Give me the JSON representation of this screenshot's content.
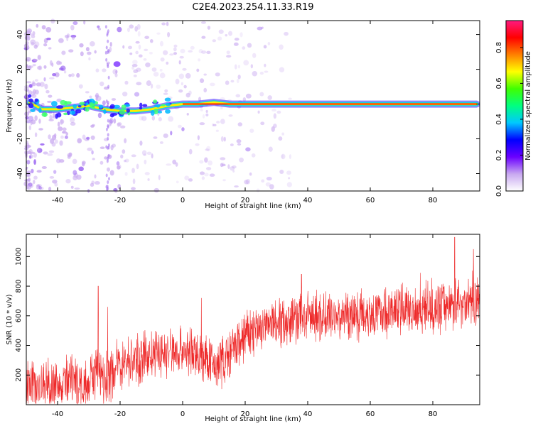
{
  "figure_title": "C2E4.2023.254.11.33.R19",
  "colors": {
    "snr_line": "#ee2a2a",
    "signal_band": "#18d4d8",
    "signal_core": "#ff2200",
    "scatter": "#c8a8f0"
  },
  "chart_data": [
    {
      "type": "heatmap",
      "title": "",
      "xlabel": "Height of straight line (km)",
      "ylabel": "Frequency (Hz)",
      "xlim": [
        -50,
        95
      ],
      "ylim": [
        -50,
        48
      ],
      "xticks": [
        "-40",
        "-20",
        "0",
        "20",
        "40",
        "60",
        "80"
      ],
      "yticks": [
        "-40",
        "-20",
        "0",
        "20",
        "40"
      ],
      "colorbar": {
        "label": "Normalized spectral amplitude",
        "range": [
          0,
          0.95
        ],
        "ticks": [
          "0.0",
          "0.2",
          "0.4",
          "0.6",
          "0.8"
        ],
        "colormap": [
          "#ffffff",
          "#c8a8f0",
          "#6a00ff",
          "#0000ff",
          "#00c8ff",
          "#00ff80",
          "#40ff00",
          "#ffff00",
          "#ff8000",
          "#ff0000",
          "#ff1a80"
        ]
      },
      "signal_ridge": {
        "x": [
          -49,
          -45,
          -40,
          -35,
          -30,
          -25,
          -20,
          -15,
          -10,
          -5,
          0,
          5,
          10,
          15,
          20,
          30,
          40,
          50,
          60,
          70,
          80,
          90,
          94
        ],
        "frequency": [
          1,
          -3,
          -3,
          -2,
          -1,
          -3,
          -4,
          -4,
          -3,
          -1,
          0,
          0,
          1,
          0,
          0,
          0,
          0,
          0,
          0,
          0,
          0,
          0,
          0
        ]
      }
    },
    {
      "type": "line",
      "title": "",
      "xlabel": "Height of straight line (km)",
      "ylabel": "SNR (10 * v/v)",
      "xlim": [
        -50,
        95
      ],
      "ylim": [
        0,
        1150
      ],
      "xticks": [
        "-40",
        "-20",
        "0",
        "20",
        "40",
        "60",
        "80"
      ],
      "yticks": [
        "200",
        "400",
        "600",
        "800",
        "1000"
      ],
      "grid": false,
      "trend": {
        "x": [
          -50,
          -40,
          -30,
          -27,
          -25,
          -20,
          -10,
          0,
          5,
          10,
          15,
          20,
          30,
          40,
          50,
          60,
          70,
          80,
          90,
          95
        ],
        "y": [
          120,
          130,
          170,
          230,
          160,
          280,
          330,
          370,
          330,
          260,
          330,
          470,
          560,
          590,
          600,
          620,
          640,
          660,
          690,
          720
        ]
      },
      "spread": 170,
      "spikes": [
        {
          "x": -27,
          "y": 800
        },
        {
          "x": -24,
          "y": 660
        },
        {
          "x": 6,
          "y": 720
        },
        {
          "x": 38,
          "y": 880
        },
        {
          "x": 76,
          "y": 890
        },
        {
          "x": 87,
          "y": 1130
        },
        {
          "x": 93,
          "y": 1050
        }
      ]
    }
  ]
}
